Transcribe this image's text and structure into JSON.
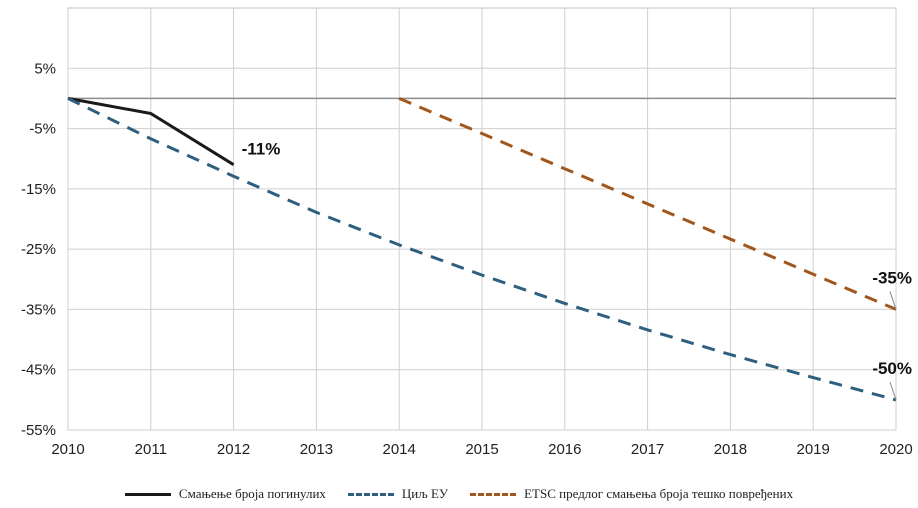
{
  "chart_data": {
    "type": "line",
    "x": [
      2010,
      2011,
      2012,
      2013,
      2014,
      2015,
      2016,
      2017,
      2018,
      2019,
      2020
    ],
    "x_tick_labels": [
      "2010",
      "2011",
      "2012",
      "2013",
      "2014",
      "2015",
      "2016",
      "2017",
      "2018",
      "2019",
      "2020"
    ],
    "y_tick_labels": [
      "5%",
      "-5%",
      "-15%",
      "-25%",
      "-35%",
      "-45%",
      "-55%"
    ],
    "y_ticks": [
      5,
      -5,
      -15,
      -25,
      -35,
      -45,
      -55
    ],
    "ylim": [
      -55,
      15
    ],
    "xlim": [
      2010,
      2020
    ],
    "grid": true,
    "legend_position": "bottom",
    "series": [
      {
        "name": "Смањење броја погинулих",
        "color": "#1a1a1a",
        "dash": "solid",
        "points": [
          [
            2010,
            0
          ],
          [
            2011,
            -2.5
          ],
          [
            2012,
            -11
          ]
        ]
      },
      {
        "name": "Циљ ЕУ",
        "color": "#2f5f7f",
        "dash": "dashed",
        "points": [
          [
            2010,
            0
          ],
          [
            2011,
            -6.7
          ],
          [
            2012,
            -12.9
          ],
          [
            2013,
            -18.9
          ],
          [
            2014,
            -24.3
          ],
          [
            2015,
            -29.3
          ],
          [
            2016,
            -34
          ],
          [
            2017,
            -38.4
          ],
          [
            2018,
            -42.5
          ],
          [
            2019,
            -46.3
          ],
          [
            2020,
            -50
          ]
        ]
      },
      {
        "name": "ETSC предлог смањења броја тешко повређених",
        "color": "#a0561c",
        "dash": "dashed",
        "points": [
          [
            2014,
            0
          ],
          [
            2020,
            -35
          ]
        ]
      }
    ],
    "annotations": [
      {
        "text": "-11%",
        "x": 2012,
        "y": -11
      },
      {
        "text": "-35%",
        "x": 2020,
        "y": -35
      },
      {
        "text": "-50%",
        "x": 2020,
        "y": -50
      }
    ]
  }
}
